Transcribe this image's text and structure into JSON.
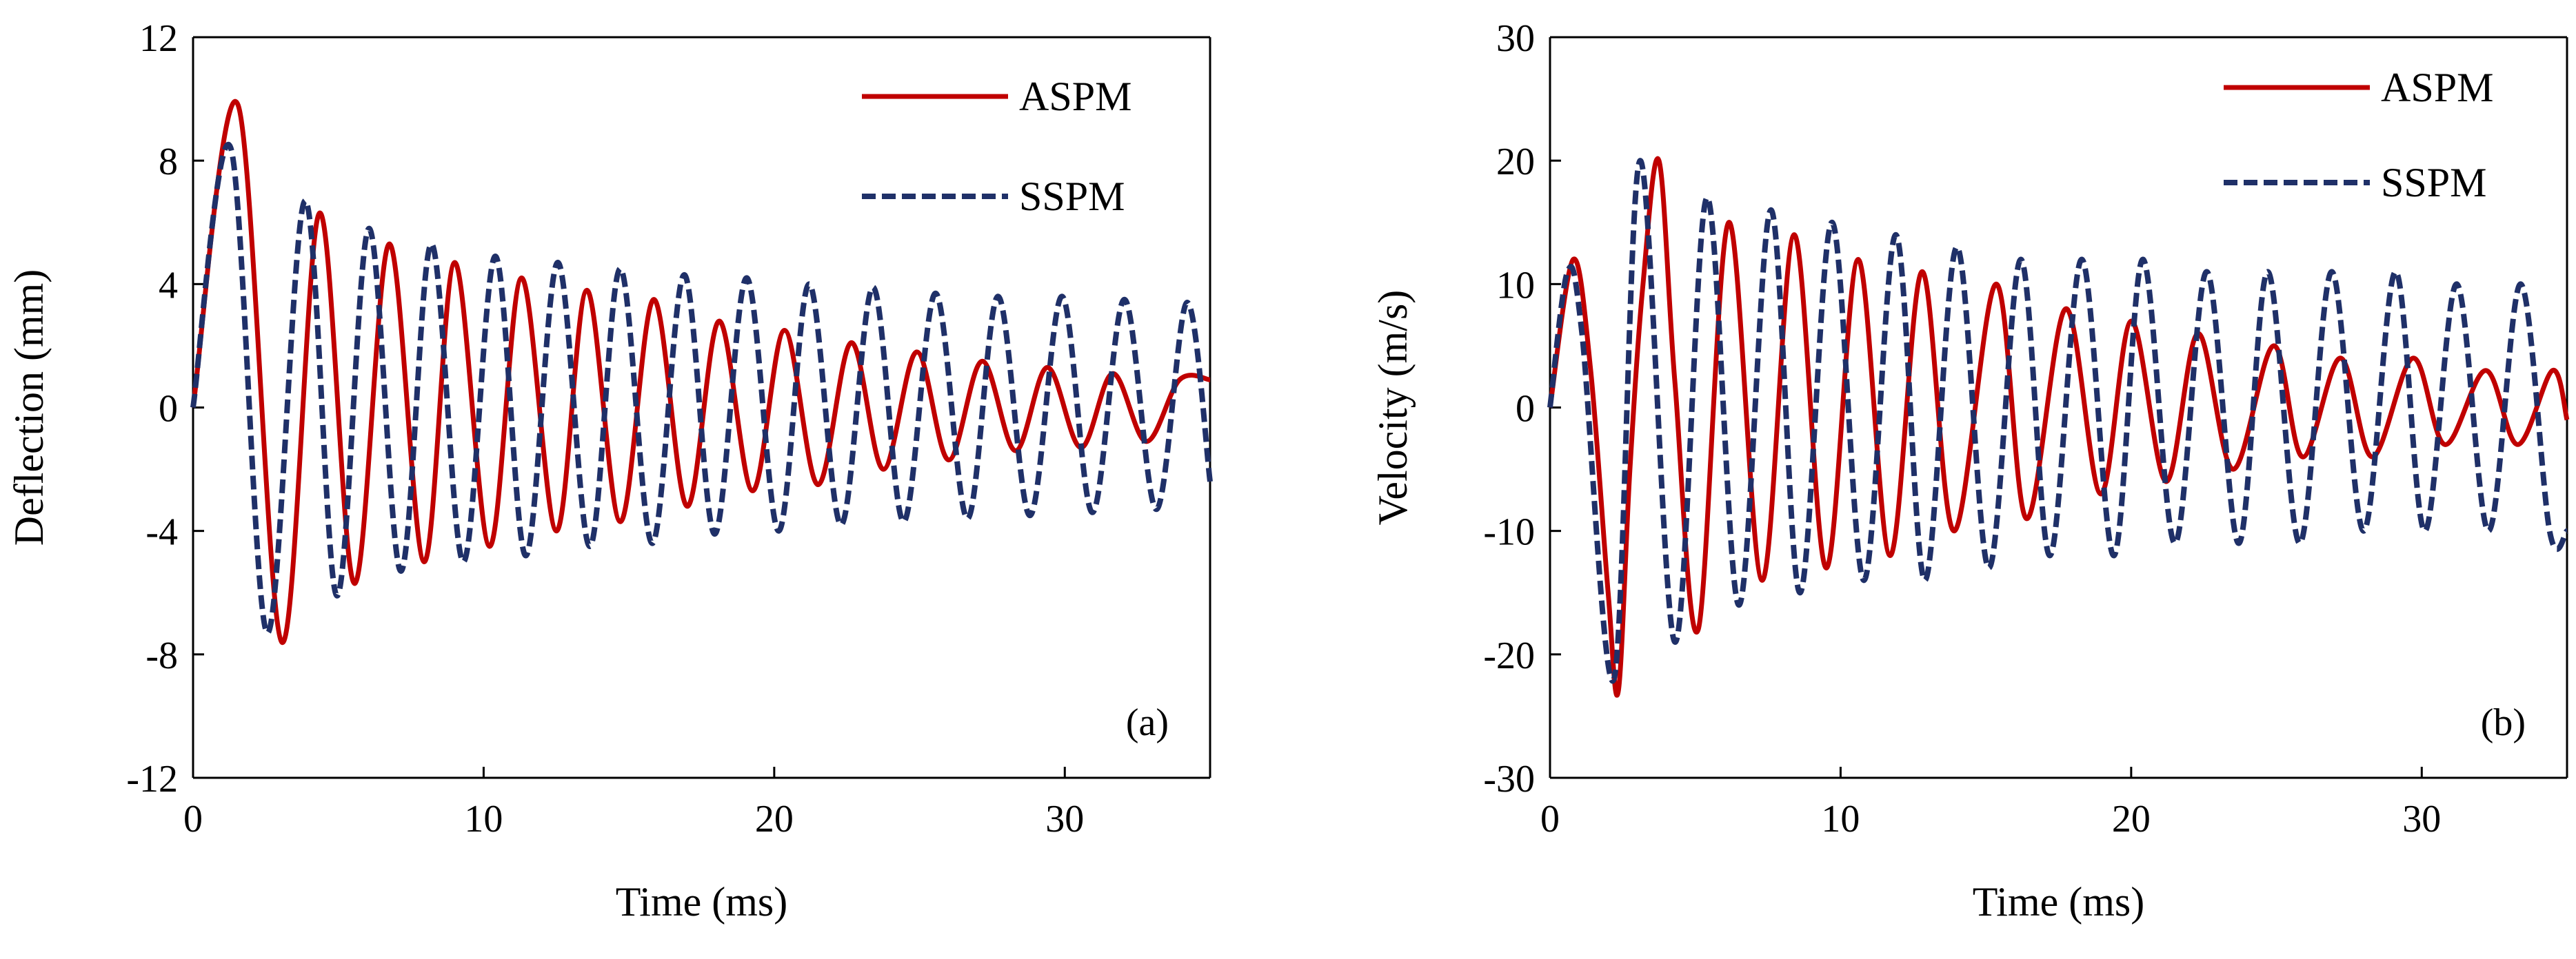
{
  "chart_data": [
    {
      "type": "line",
      "panel_label": "(a)",
      "xlabel": "Time (ms)",
      "ylabel": "Deflection (mm)",
      "xlim": [
        0,
        35
      ],
      "ylim": [
        -12,
        12
      ],
      "xticks": [
        0,
        10,
        20,
        30
      ],
      "yticks": [
        -12,
        -8,
        -4,
        0,
        4,
        8,
        12
      ],
      "xtick_labels": [
        "0",
        "10",
        "20",
        "30"
      ],
      "ytick_labels": [
        "-12",
        "-8",
        "-4",
        "0",
        "4",
        "8",
        "12"
      ],
      "legend_position": "top-right",
      "series": [
        {
          "name": "ASPM",
          "color": "#C00000",
          "style": "solid",
          "x": [
            0,
            1.55,
            3.05,
            4.35,
            5.55,
            6.75,
            7.95,
            9.0,
            10.2,
            11.3,
            12.5,
            13.55,
            14.7,
            15.85,
            17.0,
            18.1,
            19.25,
            20.35,
            21.5,
            22.65,
            23.75,
            24.9,
            26.0,
            27.15,
            28.3,
            29.4,
            30.55,
            31.65,
            32.8,
            33.95,
            35.0
          ],
          "y": [
            0,
            9.8,
            -7.6,
            6.3,
            -5.7,
            5.3,
            -5.0,
            4.7,
            -4.5,
            4.2,
            -4.0,
            3.8,
            -3.7,
            3.5,
            -3.2,
            2.8,
            -2.7,
            2.5,
            -2.5,
            2.1,
            -2.0,
            1.8,
            -1.7,
            1.5,
            -1.4,
            1.3,
            -1.3,
            1.1,
            -1.1,
            0.9,
            0.9
          ]
        },
        {
          "name": "SSPM",
          "color": "#1F3068",
          "style": "dashed",
          "x": [
            0,
            1.3,
            2.55,
            3.85,
            4.95,
            6.05,
            7.15,
            8.2,
            9.3,
            10.4,
            11.45,
            12.55,
            13.65,
            14.7,
            15.8,
            16.9,
            17.95,
            19.05,
            20.15,
            21.2,
            22.3,
            23.4,
            24.45,
            25.55,
            26.65,
            27.7,
            28.8,
            29.9,
            30.95,
            32.05,
            33.15,
            34.2,
            35.0
          ],
          "y": [
            0,
            8.4,
            -7.3,
            6.7,
            -6.1,
            5.8,
            -5.3,
            5.3,
            -5.0,
            4.9,
            -4.8,
            4.7,
            -4.5,
            4.5,
            -4.4,
            4.3,
            -4.1,
            4.2,
            -4.0,
            4.0,
            -3.8,
            3.9,
            -3.7,
            3.7,
            -3.6,
            3.6,
            -3.5,
            3.6,
            -3.4,
            3.5,
            -3.3,
            3.4,
            -2.4
          ]
        }
      ]
    },
    {
      "type": "line",
      "panel_label": "(b)",
      "xlabel": "Time (ms)",
      "ylabel": "Velocity (m/s)",
      "xlim": [
        0,
        35
      ],
      "ylim": [
        -30,
        30
      ],
      "xticks": [
        0,
        10,
        20,
        30
      ],
      "yticks": [
        -30,
        -20,
        -10,
        0,
        10,
        20,
        30
      ],
      "xtick_labels": [
        "0",
        "10",
        "20",
        "30"
      ],
      "ytick_labels": [
        "-30",
        "-20",
        "-10",
        "0",
        "10",
        "20",
        "30"
      ],
      "legend_position": "top-right",
      "series": [
        {
          "name": "ASPM",
          "color": "#C00000",
          "style": "solid",
          "x": [
            0,
            0.8,
            1.4,
            2.0,
            2.35,
            2.75,
            3.2,
            3.75,
            4.3,
            5.1,
            6.15,
            7.3,
            8.4,
            9.5,
            10.6,
            11.7,
            12.8,
            13.9,
            15.35,
            16.4,
            17.75,
            18.95,
            20.0,
            21.2,
            22.3,
            23.5,
            24.9,
            25.9,
            27.2,
            28.3,
            29.7,
            30.8,
            32.2,
            33.3,
            34.5,
            35.0
          ],
          "y": [
            0,
            12,
            3,
            -15,
            -23,
            -5,
            10,
            20,
            2,
            -18,
            15,
            -14,
            14,
            -13,
            12,
            -12,
            11,
            -10,
            10,
            -9,
            8,
            -7,
            7,
            -6,
            6,
            -5,
            5,
            -4,
            4,
            -4,
            4,
            -3,
            3,
            -3,
            3,
            -1
          ]
        },
        {
          "name": "SSPM",
          "color": "#1F3068",
          "style": "dashed",
          "x": [
            0,
            0.6,
            1.1,
            2.2,
            3.1,
            4.3,
            5.4,
            6.5,
            7.6,
            8.6,
            9.7,
            10.8,
            11.9,
            12.9,
            14.0,
            15.1,
            16.2,
            17.2,
            18.3,
            19.4,
            20.4,
            21.5,
            22.6,
            23.7,
            24.7,
            25.8,
            26.9,
            28.0,
            29.1,
            30.1,
            31.2,
            32.3,
            33.4,
            34.4,
            35.0
          ],
          "y": [
            0,
            11,
            6,
            -22,
            20,
            -19,
            17,
            -16,
            16,
            -15,
            15,
            -14,
            14,
            -14,
            13,
            -13,
            12,
            -12,
            12,
            -12,
            12,
            -11,
            11,
            -11,
            11,
            -11,
            11,
            -10,
            11,
            -10,
            10,
            -10,
            10,
            -10,
            -10
          ]
        }
      ]
    }
  ]
}
